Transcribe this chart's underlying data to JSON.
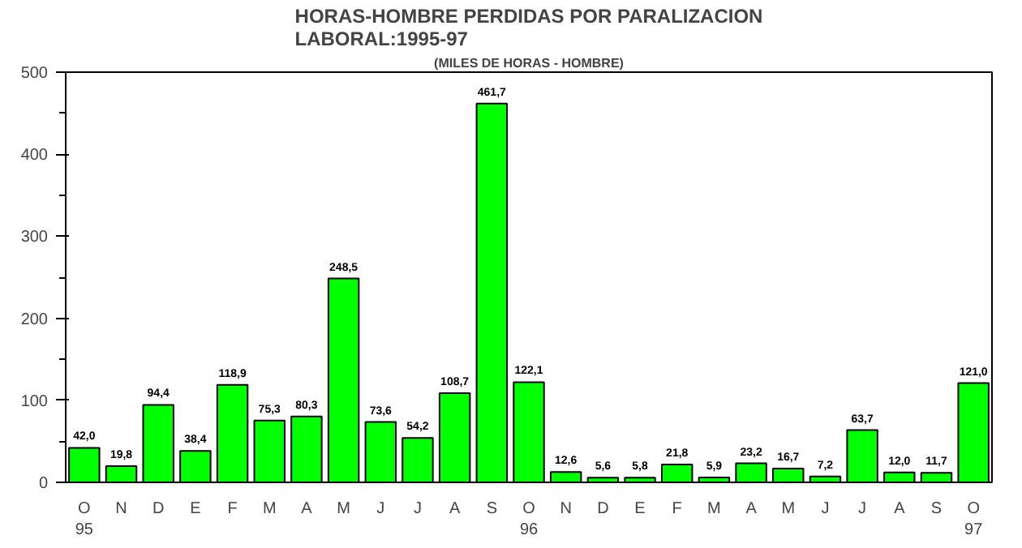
{
  "chart_data": {
    "type": "bar",
    "title": "HORAS-HOMBRE PERDIDAS POR PARALIZACION\nLABORAL:1995-97",
    "subtitle": "(MILES DE HORAS - HOMBRE)",
    "categories": [
      "O\n95",
      "N",
      "D",
      "E",
      "F",
      "M",
      "A",
      "M",
      "J",
      "J",
      "A",
      "S",
      "O\n96",
      "N",
      "D",
      "E",
      "F",
      "M",
      "A",
      "M",
      "J",
      "J",
      "A",
      "S",
      "O\n97"
    ],
    "values": [
      42.0,
      19.8,
      94.4,
      38.4,
      118.9,
      75.3,
      80.3,
      248.5,
      73.6,
      54.2,
      108.7,
      461.7,
      122.1,
      12.6,
      5.6,
      5.8,
      21.8,
      5.9,
      23.2,
      16.7,
      7.2,
      63.7,
      12.0,
      11.7,
      121.0
    ],
    "value_labels": [
      "42,0",
      "19,8",
      "94,4",
      "38,4",
      "118,9",
      "75,3",
      "80,3",
      "248,5",
      "73,6",
      "54,2",
      "108,7",
      "461,7",
      "122,1",
      "12,6",
      "5,6",
      "5,8",
      "21,8",
      "5,9",
      "23,2",
      "16,7",
      "7,2",
      "63,7",
      "12,0",
      "11,7",
      "121,0"
    ],
    "color": "#00ff00",
    "ylim": [
      0,
      500
    ],
    "yticks": [
      0,
      100,
      200,
      300,
      400,
      500
    ],
    "grid": false
  }
}
